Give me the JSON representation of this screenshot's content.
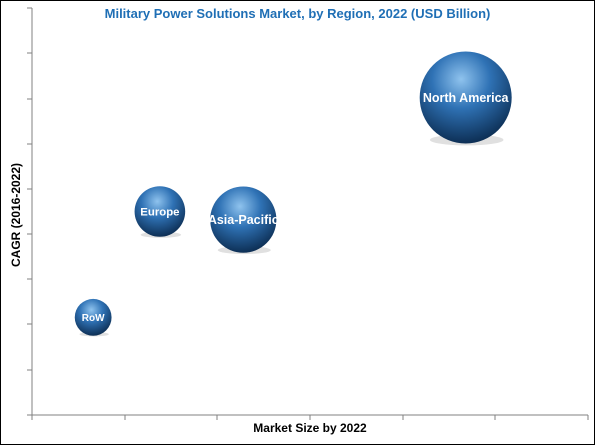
{
  "chart_data": {
    "type": "scatter",
    "title": "Military Power Solutions Market, by Region, 2022 (USD Billion)",
    "xlabel": "Market Size by 2022",
    "ylabel": "CAGR (2016-2022)",
    "xlim": [
      0,
      10
    ],
    "ylim": [
      0,
      10
    ],
    "grid": false,
    "points": [
      {
        "label": "North America",
        "x": 7.8,
        "y": 7.8,
        "size": 1.0
      },
      {
        "label": "Europe",
        "x": 2.3,
        "y": 5.0,
        "size": 0.55
      },
      {
        "label": "Asia-Pacific",
        "x": 3.8,
        "y": 4.8,
        "size": 0.72
      },
      {
        "label": "RoW",
        "x": 1.1,
        "y": 2.4,
        "size": 0.4
      }
    ]
  },
  "colors": {
    "title": "#1f6fb5",
    "bubble_light": "#8fc3ee",
    "bubble_mid": "#2f72b5",
    "bubble_dark": "#0d2f55"
  }
}
